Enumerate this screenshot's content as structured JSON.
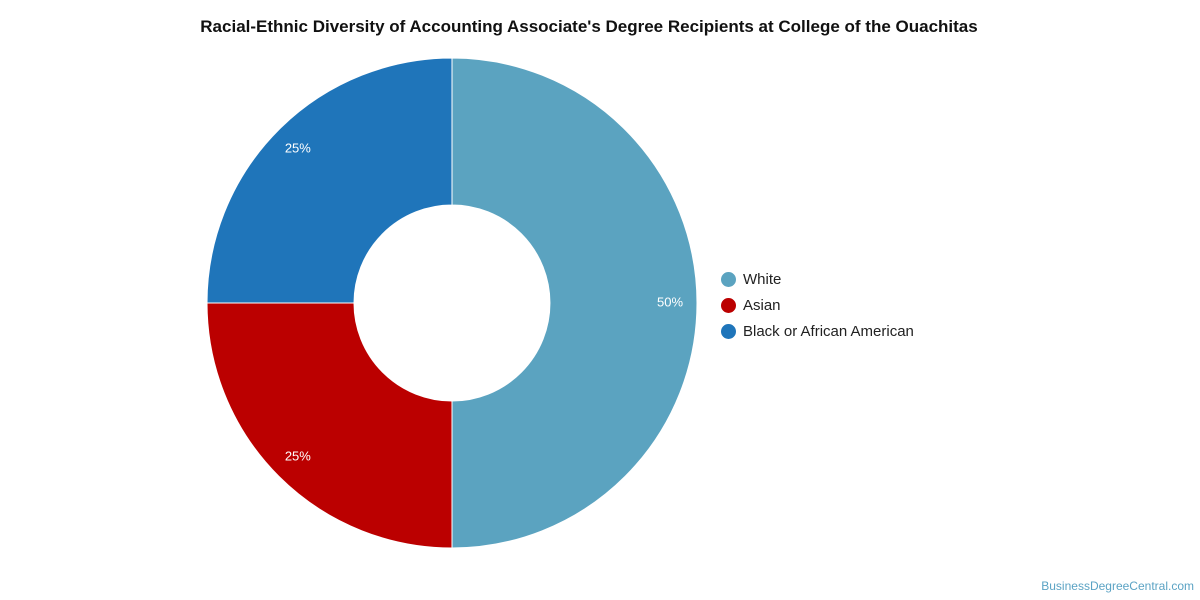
{
  "chart_data": {
    "type": "pie",
    "title": "Racial-Ethnic Diversity of Accounting Associate's Degree Recipients at College of the Ouachitas",
    "slices": [
      {
        "name": "White",
        "value": 50,
        "label": "50%",
        "color": "#5ba3c0"
      },
      {
        "name": "Asian",
        "value": 25,
        "label": "25%",
        "color": "#bb0000"
      },
      {
        "name": "Black or African American",
        "value": 25,
        "label": "25%",
        "color": "#1f75ba"
      }
    ],
    "donut": true,
    "legend_position": "right"
  },
  "watermark": "BusinessDegreeCentral.com"
}
